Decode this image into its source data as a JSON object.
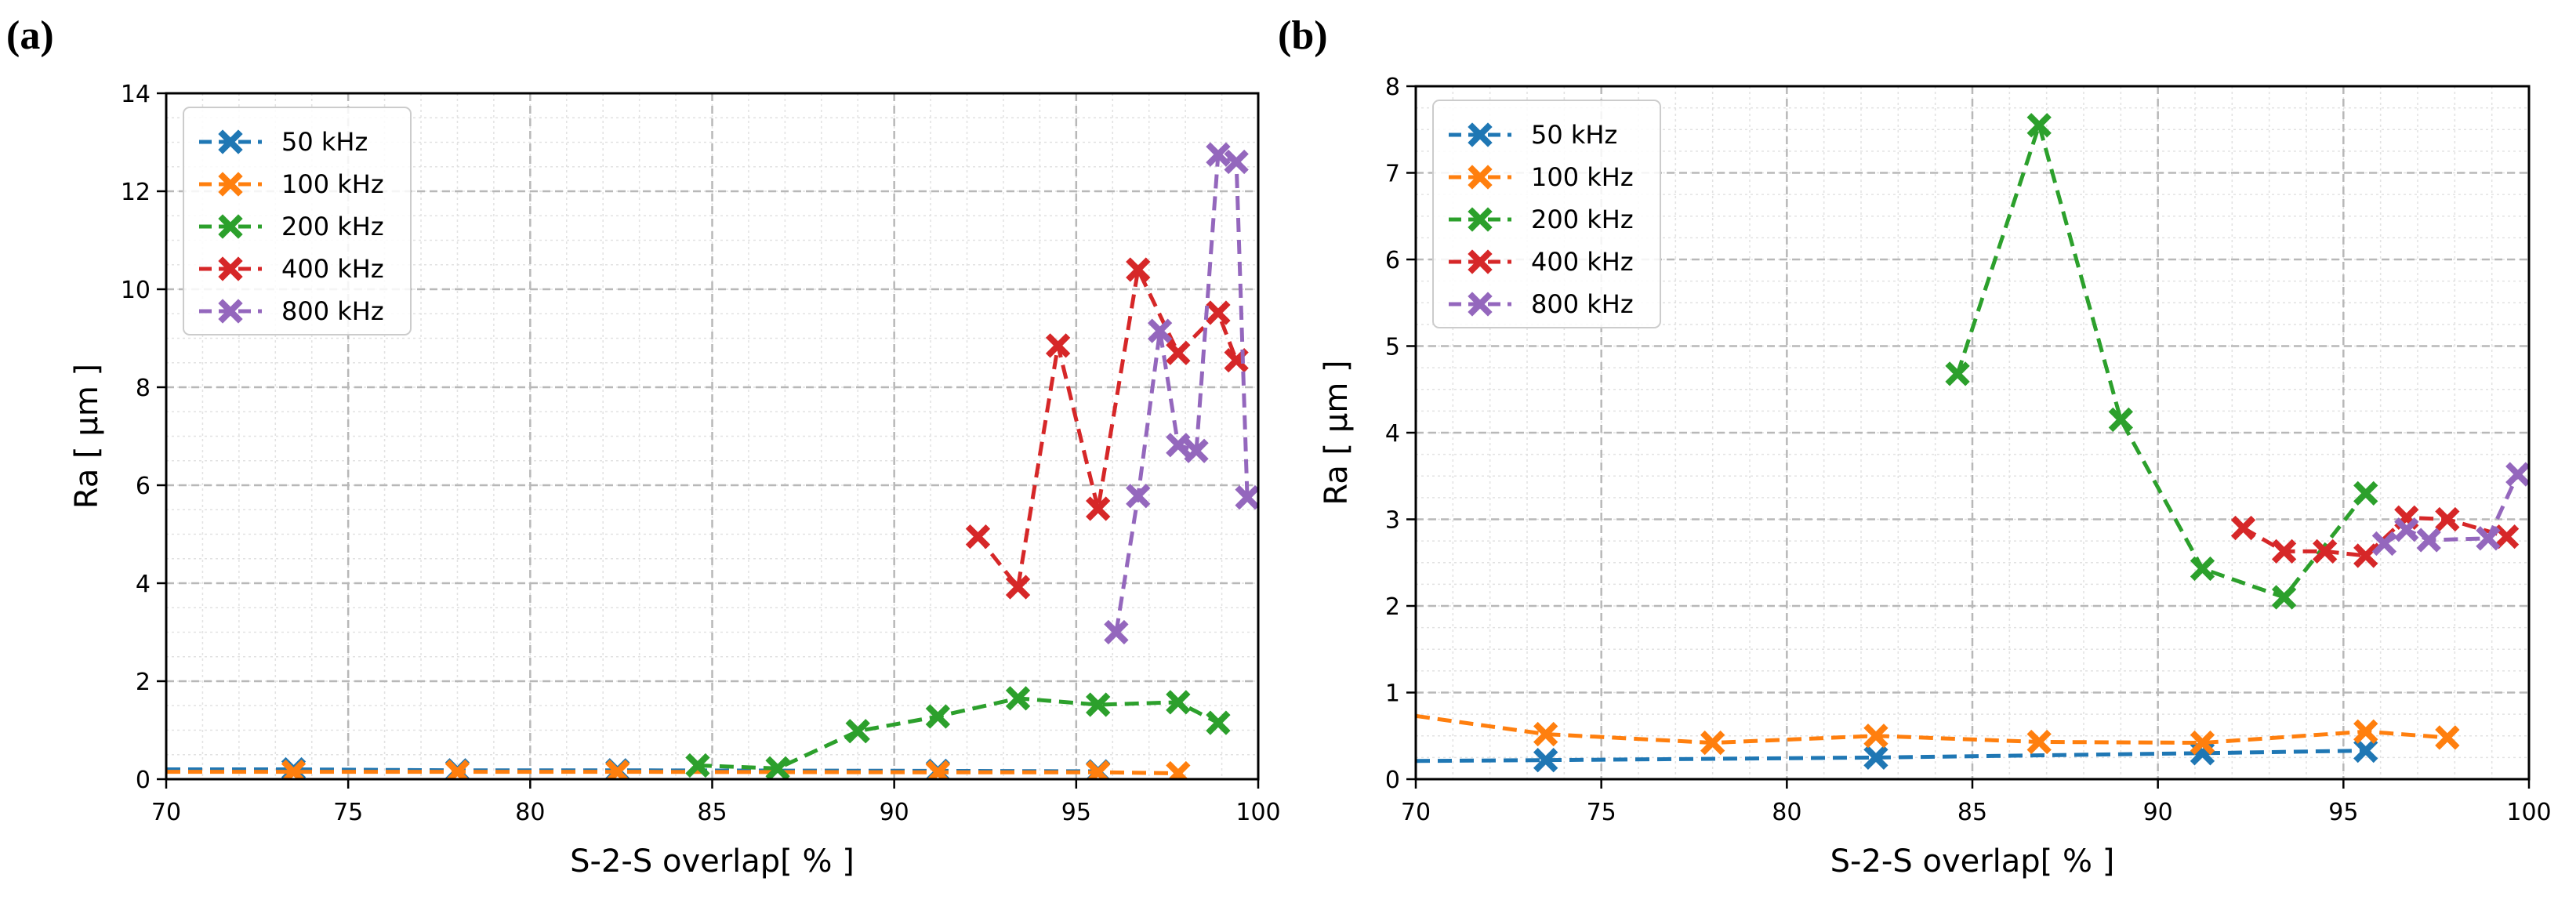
{
  "chart_data": [
    {
      "type": "line",
      "panel_label": "(a)",
      "xlabel": "S-2-S overlap[ % ]",
      "ylabel": "Ra [ μm ]",
      "xlim": [
        70,
        100
      ],
      "ylim": [
        0,
        14
      ],
      "xticks": [
        70,
        75,
        80,
        85,
        90,
        95,
        100
      ],
      "yticks": [
        0,
        2,
        4,
        6,
        8,
        10,
        12,
        14
      ],
      "grid": true,
      "legend_position": "top-left",
      "series": [
        {
          "name": "50 kHz",
          "color": "#1f77b4",
          "points": [
            [
              70,
              0.2
            ],
            [
              73.5,
              0.2
            ],
            [
              78,
              0.18
            ],
            [
              82.4,
              0.18
            ],
            [
              91.2,
              0.17
            ],
            [
              95.6,
              0.16
            ]
          ]
        },
        {
          "name": "100 kHz",
          "color": "#ff7f0e",
          "points": [
            [
              70,
              0.15
            ],
            [
              73.5,
              0.15
            ],
            [
              78,
              0.15
            ],
            [
              82.4,
              0.15
            ],
            [
              91.2,
              0.14
            ],
            [
              95.6,
              0.14
            ],
            [
              97.8,
              0.12
            ]
          ]
        },
        {
          "name": "200 kHz",
          "color": "#2ca02c",
          "points": [
            [
              84.6,
              0.28
            ],
            [
              86.8,
              0.22
            ],
            [
              89,
              0.98
            ],
            [
              91.2,
              1.28
            ],
            [
              93.4,
              1.65
            ],
            [
              95.6,
              1.52
            ],
            [
              97.8,
              1.57
            ],
            [
              98.9,
              1.15
            ]
          ]
        },
        {
          "name": "400 kHz",
          "color": "#d62728",
          "points": [
            [
              92.3,
              4.95
            ],
            [
              93.4,
              3.92
            ],
            [
              94.5,
              8.85
            ],
            [
              95.6,
              5.52
            ],
            [
              96.7,
              10.4
            ],
            [
              97.8,
              8.7
            ],
            [
              98.9,
              9.52
            ],
            [
              99.4,
              8.55
            ]
          ]
        },
        {
          "name": "800 kHz",
          "color": "#9467bd",
          "points": [
            [
              96.1,
              3.0
            ],
            [
              96.7,
              5.78
            ],
            [
              97.3,
              9.15
            ],
            [
              97.8,
              6.82
            ],
            [
              98.3,
              6.7
            ],
            [
              98.9,
              12.75
            ],
            [
              99.4,
              12.6
            ],
            [
              99.7,
              5.75
            ]
          ]
        }
      ]
    },
    {
      "type": "line",
      "panel_label": "(b)",
      "xlabel": "S-2-S overlap[ % ]",
      "ylabel": "Ra [ μm ]",
      "xlim": [
        70,
        100
      ],
      "ylim": [
        0,
        8
      ],
      "xticks": [
        70,
        75,
        80,
        85,
        90,
        95,
        100
      ],
      "yticks": [
        0,
        1,
        2,
        3,
        4,
        5,
        6,
        7,
        8
      ],
      "grid": true,
      "legend_position": "top-left",
      "series": [
        {
          "name": "50 kHz",
          "color": "#1f77b4",
          "points": [
            [
              70,
              0.21
            ],
            [
              73.5,
              0.22
            ],
            [
              82.4,
              0.25
            ],
            [
              91.2,
              0.3
            ],
            [
              95.6,
              0.33
            ]
          ]
        },
        {
          "name": "100 kHz",
          "color": "#ff7f0e",
          "points": [
            [
              70,
              0.73
            ],
            [
              73.5,
              0.52
            ],
            [
              78,
              0.42
            ],
            [
              82.4,
              0.5
            ],
            [
              86.8,
              0.43
            ],
            [
              91.2,
              0.42
            ],
            [
              95.6,
              0.55
            ],
            [
              97.8,
              0.48
            ]
          ]
        },
        {
          "name": "200 kHz",
          "color": "#2ca02c",
          "points": [
            [
              84.6,
              4.68
            ],
            [
              86.8,
              7.55
            ],
            [
              89,
              4.15
            ],
            [
              91.2,
              2.43
            ],
            [
              93.4,
              2.1
            ],
            [
              95.6,
              3.3
            ]
          ]
        },
        {
          "name": "400 kHz",
          "color": "#d62728",
          "points": [
            [
              92.3,
              2.9
            ],
            [
              93.4,
              2.63
            ],
            [
              94.5,
              2.63
            ],
            [
              95.6,
              2.58
            ],
            [
              96.7,
              3.02
            ],
            [
              97.8,
              3.0
            ],
            [
              99.4,
              2.8
            ]
          ]
        },
        {
          "name": "800 kHz",
          "color": "#9467bd",
          "points": [
            [
              96.1,
              2.72
            ],
            [
              96.7,
              2.88
            ],
            [
              97.3,
              2.76
            ],
            [
              98.9,
              2.78
            ],
            [
              99.7,
              3.52
            ]
          ]
        }
      ]
    }
  ]
}
